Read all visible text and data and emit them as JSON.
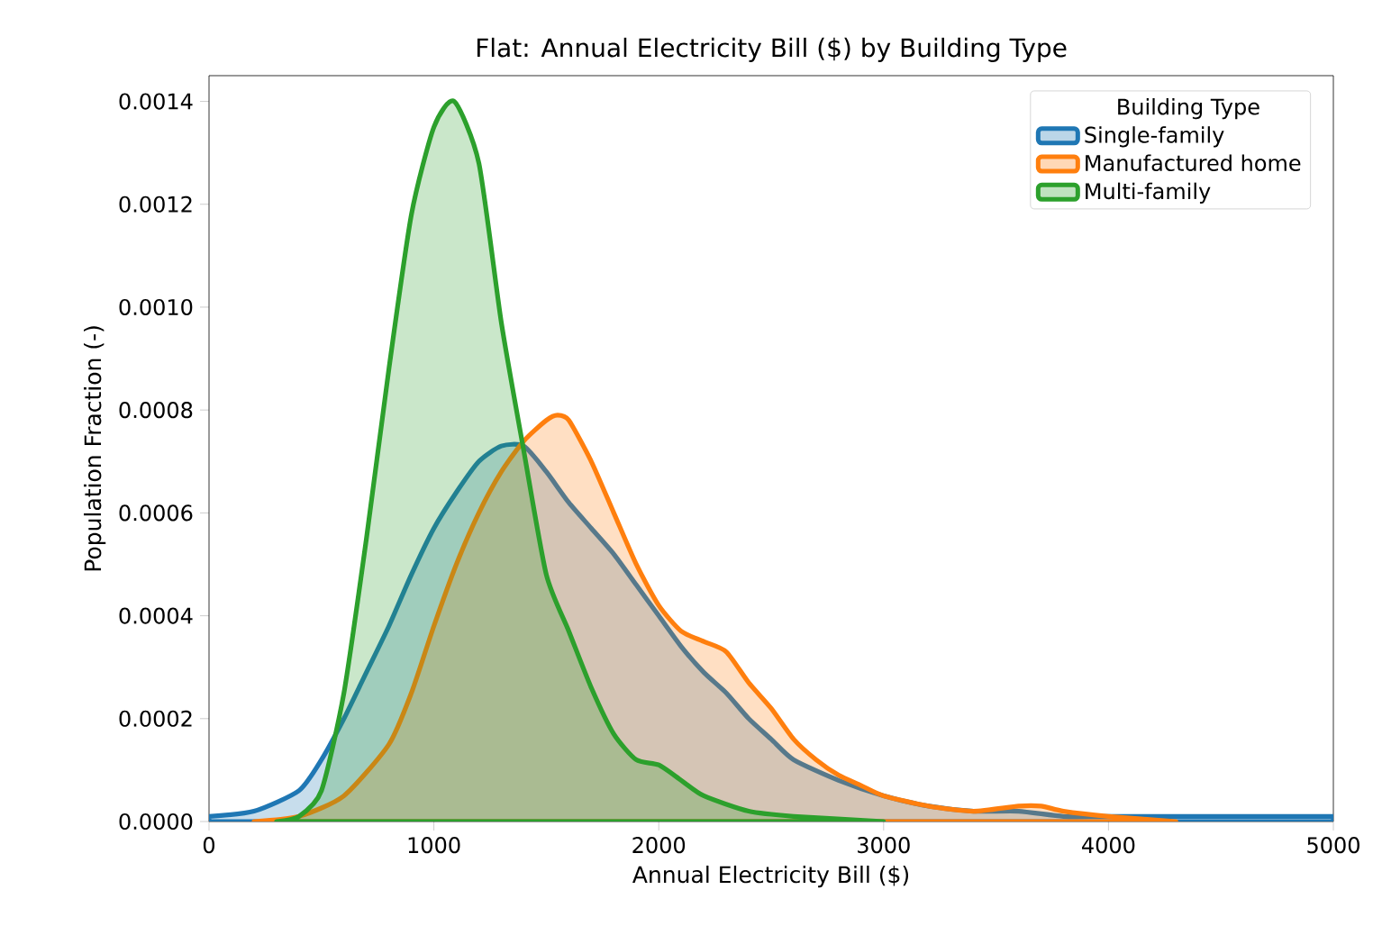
{
  "chart_data": {
    "type": "area",
    "title": "Flat: Annual Electricity Bill ($) by Building Type",
    "xlabel": "Annual Electricity Bill ($)",
    "ylabel": "Population Fraction (-)",
    "legend_title": "Building Type",
    "legend": "top right",
    "marker": "none",
    "line_style": "solid",
    "grid": false,
    "xlim": [
      0,
      5000
    ],
    "ylim": [
      0,
      0.00145
    ],
    "xticks": [
      0,
      1000,
      2000,
      3000,
      4000,
      5000
    ],
    "yticks": [
      {
        "value": 0,
        "label": "0.0000"
      },
      {
        "value": 0.0002,
        "label": "0.0002"
      },
      {
        "value": 0.0004,
        "label": "0.0004"
      },
      {
        "value": 0.0006,
        "label": "0.0006"
      },
      {
        "value": 0.0008,
        "label": "0.0008"
      },
      {
        "value": 0.001,
        "label": "0.0010"
      },
      {
        "value": 0.0012,
        "label": "0.0012"
      },
      {
        "value": 0.0014,
        "label": "0.0014"
      }
    ],
    "series": [
      {
        "name": "Single-family",
        "color": "#1f77b4",
        "x": [
          0,
          200,
          400,
          500,
          600,
          700,
          800,
          900,
          1000,
          1100,
          1200,
          1300,
          1400,
          1500,
          1600,
          1700,
          1800,
          1900,
          2000,
          2100,
          2200,
          2300,
          2400,
          2500,
          2600,
          2800,
          3000,
          3200,
          3400,
          3600,
          3800,
          4000,
          4500,
          5000
        ],
        "values": [
          1e-05,
          2e-05,
          6e-05,
          0.00012,
          0.0002,
          0.00029,
          0.00038,
          0.00048,
          0.00057,
          0.00064,
          0.0007,
          0.00073,
          0.00073,
          0.00068,
          0.00062,
          0.00057,
          0.00052,
          0.00046,
          0.0004,
          0.00034,
          0.00029,
          0.00025,
          0.0002,
          0.00016,
          0.00012,
          8e-05,
          5e-05,
          3e-05,
          2e-05,
          2e-05,
          1e-05,
          1e-05,
          1e-05,
          1e-05
        ]
      },
      {
        "name": "Manufactured home",
        "color": "#ff7f0e",
        "x": [
          200,
          400,
          600,
          800,
          900,
          1000,
          1100,
          1200,
          1300,
          1400,
          1500,
          1550,
          1600,
          1700,
          1800,
          1900,
          2000,
          2100,
          2200,
          2300,
          2400,
          2500,
          2600,
          2700,
          2800,
          2900,
          3000,
          3200,
          3400,
          3600,
          3700,
          3800,
          4000,
          4300
        ],
        "values": [
          0,
          1e-05,
          5e-05,
          0.00015,
          0.00025,
          0.00038,
          0.0005,
          0.0006,
          0.00068,
          0.00074,
          0.00078,
          0.00079,
          0.00078,
          0.0007,
          0.0006,
          0.0005,
          0.00042,
          0.00037,
          0.00035,
          0.00033,
          0.00027,
          0.00022,
          0.00016,
          0.00012,
          9e-05,
          7e-05,
          5e-05,
          3e-05,
          2e-05,
          3e-05,
          3e-05,
          2e-05,
          1e-05,
          0
        ]
      },
      {
        "name": "Multi-family",
        "color": "#2ca02c",
        "x": [
          300,
          400,
          500,
          600,
          700,
          800,
          900,
          1000,
          1090,
          1200,
          1300,
          1400,
          1500,
          1600,
          1700,
          1800,
          1900,
          2000,
          2100,
          2200,
          2400,
          2600,
          3000
        ],
        "values": [
          0,
          1e-05,
          6e-05,
          0.00025,
          0.00055,
          0.00088,
          0.00118,
          0.00135,
          0.0014,
          0.00128,
          0.00097,
          0.00072,
          0.00048,
          0.00037,
          0.00026,
          0.00017,
          0.00012,
          0.00011,
          8e-05,
          5e-05,
          2e-05,
          1e-05,
          0
        ]
      }
    ]
  }
}
